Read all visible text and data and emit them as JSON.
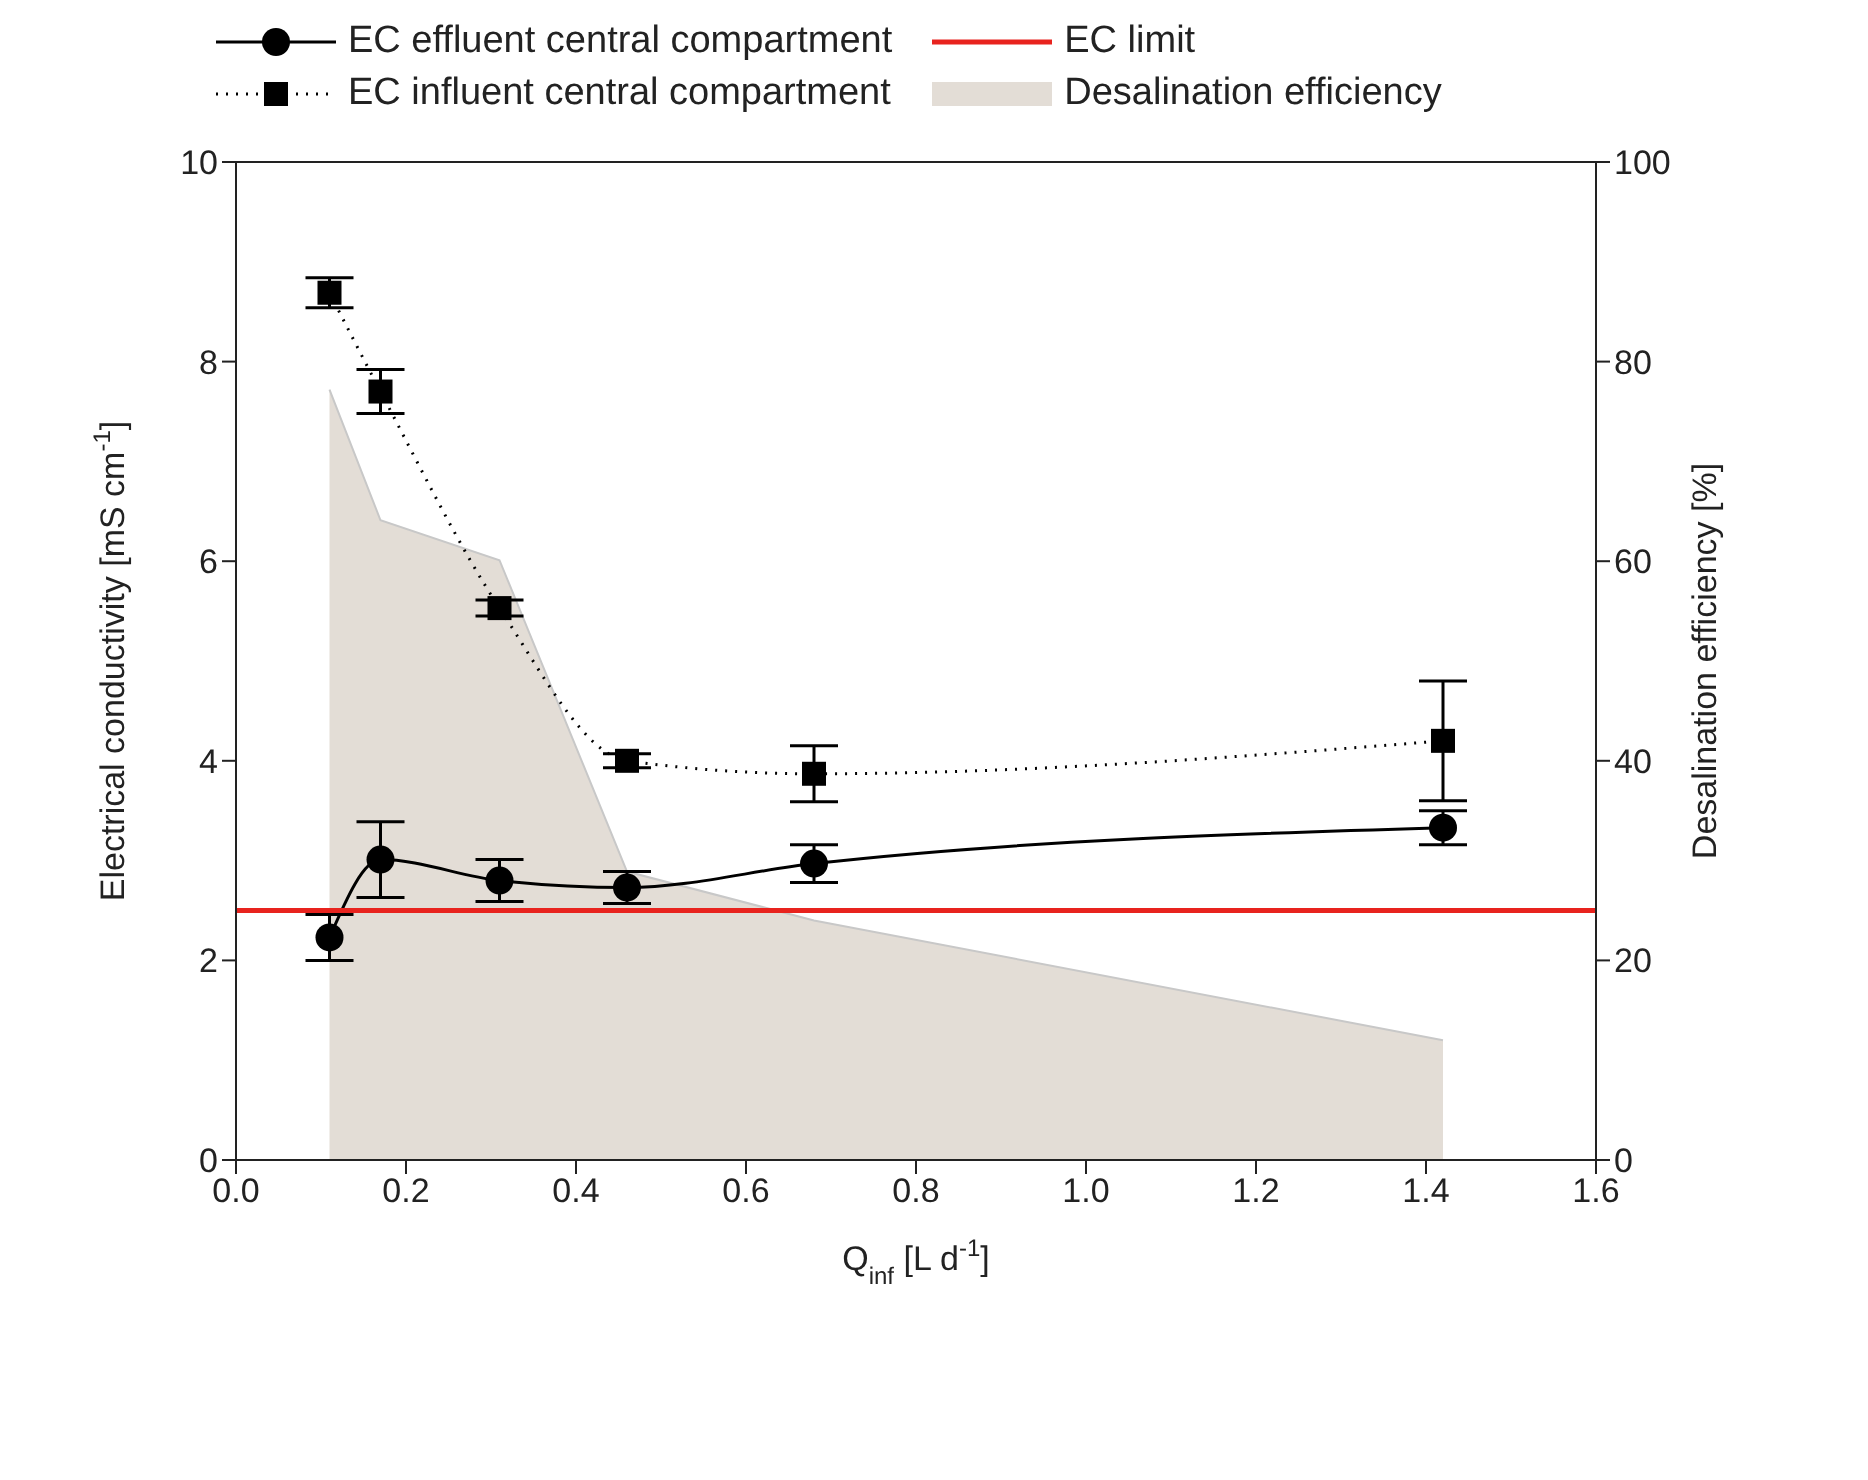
{
  "chart_data": {
    "type": "line",
    "xlabel": "Q$_{inf}$ [L d$^{-1}$]",
    "ylabel": "Electrical conductivity [mS cm$^{-1}$]",
    "y2label": "Desalination efficiency [%]",
    "x": [
      0.11,
      0.17,
      0.31,
      0.46,
      0.68,
      1.42
    ],
    "series": [
      {
        "name": "EC effluent central compartment",
        "color": "#000000",
        "marker": "circle",
        "line_style": "solid",
        "values": [
          2.23,
          3.01,
          2.8,
          2.73,
          2.97,
          3.33
        ],
        "errors": [
          0.23,
          0.38,
          0.21,
          0.16,
          0.19,
          0.17
        ]
      },
      {
        "name": "EC influent central compartment",
        "color": "#000000",
        "marker": "square",
        "line_style": "dotted",
        "values": [
          8.69,
          7.7,
          5.53,
          4.0,
          3.87,
          4.2
        ],
        "errors": [
          0.15,
          0.22,
          0.08,
          0.07,
          0.28,
          0.6
        ]
      },
      {
        "name": "Desalination efficiency",
        "type": "area",
        "axis": "y2",
        "color": "#e3ddd6",
        "values": [
          77.2,
          64.1,
          60.1,
          28.9,
          24,
          12
        ]
      }
    ],
    "ref_lines": [
      {
        "axis": "y",
        "value": 2.5,
        "label": "EC limit",
        "color": "#e8231e",
        "line_style": "solid"
      }
    ],
    "xlim": [
      0,
      1.6
    ],
    "xticks": [
      {
        "value": 0,
        "label": "0.0"
      },
      {
        "value": 0.2,
        "label": "0.2"
      },
      {
        "value": 0.4,
        "label": "0.4"
      },
      {
        "value": 0.6,
        "label": "0.6"
      },
      {
        "value": 0.8,
        "label": "0.8"
      },
      {
        "value": 1,
        "label": "1.0"
      },
      {
        "value": 1.2,
        "label": "1.2"
      },
      {
        "value": 1.4,
        "label": "1.4"
      },
      {
        "value": 1.6,
        "label": "1.6"
      }
    ],
    "ylim": [
      0,
      10
    ],
    "yticks": [
      0,
      2,
      4,
      6,
      8,
      10
    ],
    "y2lim": [
      0,
      100
    ],
    "y2ticks": [
      0,
      20,
      40,
      60,
      80,
      100
    ],
    "grid": false,
    "legend": "top"
  }
}
